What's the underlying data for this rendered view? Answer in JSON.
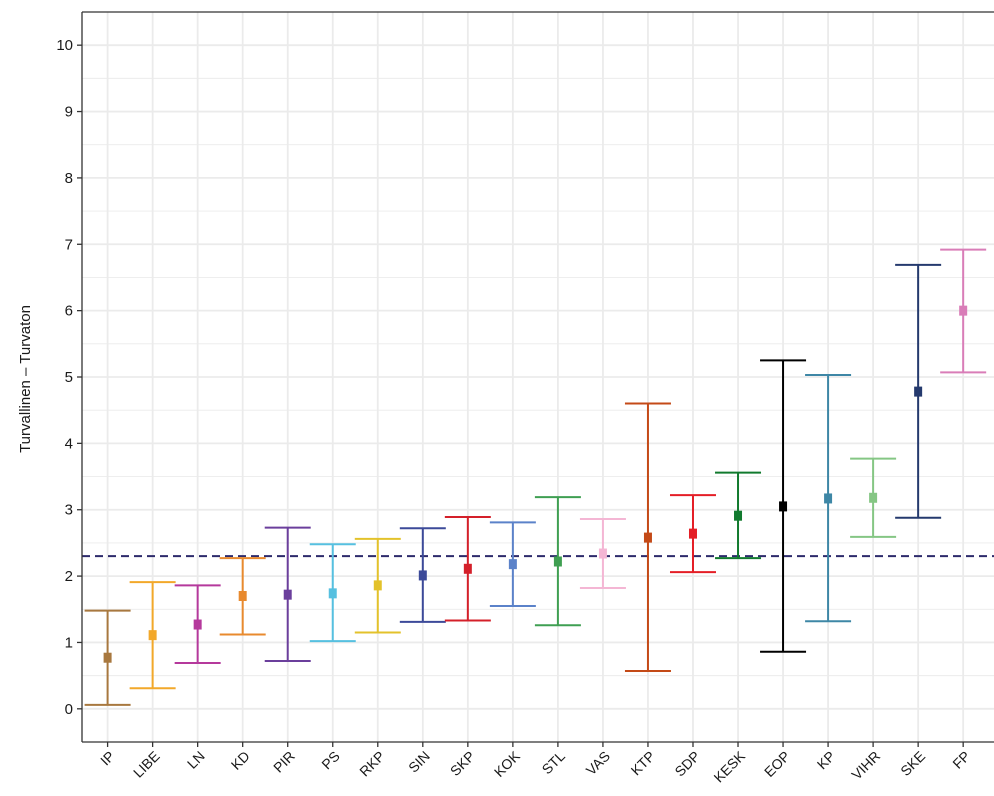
{
  "chart_data": {
    "type": "errorbar",
    "title": "",
    "xlabel": "",
    "ylabel": "Turvallinen – Turvaton",
    "ylim": [
      -0.5,
      10.5
    ],
    "yticks": [
      0,
      1,
      2,
      3,
      4,
      5,
      6,
      7,
      8,
      9,
      10
    ],
    "grid": true,
    "legend": "none",
    "reference_line": {
      "y": 2.3,
      "style": "dashed",
      "color": "#2d2a6b"
    },
    "categories": [
      "IP",
      "LIBE",
      "LN",
      "KD",
      "PIR",
      "PS",
      "RKP",
      "SIN",
      "SKP",
      "KOK",
      "STL",
      "VAS",
      "KTP",
      "SDP",
      "KESK",
      "EOP",
      "KP",
      "VIHR",
      "SKE",
      "FP"
    ],
    "points": [
      {
        "label": "IP",
        "mean": 0.77,
        "lower": 0.06,
        "upper": 1.48,
        "color": "#a8783f"
      },
      {
        "label": "LIBE",
        "mean": 1.11,
        "lower": 0.31,
        "upper": 1.91,
        "color": "#f2a82a"
      },
      {
        "label": "LN",
        "mean": 1.27,
        "lower": 0.69,
        "upper": 1.86,
        "color": "#b5399c"
      },
      {
        "label": "KD",
        "mean": 1.7,
        "lower": 1.12,
        "upper": 2.27,
        "color": "#e88a2e"
      },
      {
        "label": "PIR",
        "mean": 1.72,
        "lower": 0.72,
        "upper": 2.73,
        "color": "#6b3f9c"
      },
      {
        "label": "PS",
        "mean": 1.74,
        "lower": 1.02,
        "upper": 2.48,
        "color": "#56c0e0"
      },
      {
        "label": "RKP",
        "mean": 1.86,
        "lower": 1.15,
        "upper": 2.56,
        "color": "#e3c22b"
      },
      {
        "label": "SIN",
        "mean": 2.01,
        "lower": 1.31,
        "upper": 2.72,
        "color": "#3c4a99"
      },
      {
        "label": "SKP",
        "mean": 2.11,
        "lower": 1.33,
        "upper": 2.89,
        "color": "#d4202a"
      },
      {
        "label": "KOK",
        "mean": 2.18,
        "lower": 1.55,
        "upper": 2.81,
        "color": "#5b82c9"
      },
      {
        "label": "STL",
        "mean": 2.22,
        "lower": 1.26,
        "upper": 3.19,
        "color": "#3f9f52"
      },
      {
        "label": "VAS",
        "mean": 2.34,
        "lower": 1.82,
        "upper": 2.86,
        "color": "#f4b6d4"
      },
      {
        "label": "KTP",
        "mean": 2.58,
        "lower": 0.57,
        "upper": 4.6,
        "color": "#c44a17"
      },
      {
        "label": "SDP",
        "mean": 2.64,
        "lower": 2.06,
        "upper": 3.22,
        "color": "#e41e26"
      },
      {
        "label": "KESK",
        "mean": 2.91,
        "lower": 2.27,
        "upper": 3.56,
        "color": "#117a2e"
      },
      {
        "label": "EOP",
        "mean": 3.05,
        "lower": 0.86,
        "upper": 5.25,
        "color": "#000000"
      },
      {
        "label": "KP",
        "mean": 3.17,
        "lower": 1.32,
        "upper": 5.03,
        "color": "#3e87a6"
      },
      {
        "label": "VIHR",
        "mean": 3.18,
        "lower": 2.59,
        "upper": 3.77,
        "color": "#85c684"
      },
      {
        "label": "SKE",
        "mean": 4.78,
        "lower": 2.88,
        "upper": 6.69,
        "color": "#253a6e"
      },
      {
        "label": "FP",
        "mean": 6.0,
        "lower": 5.07,
        "upper": 6.92,
        "color": "#d97db8"
      }
    ]
  }
}
